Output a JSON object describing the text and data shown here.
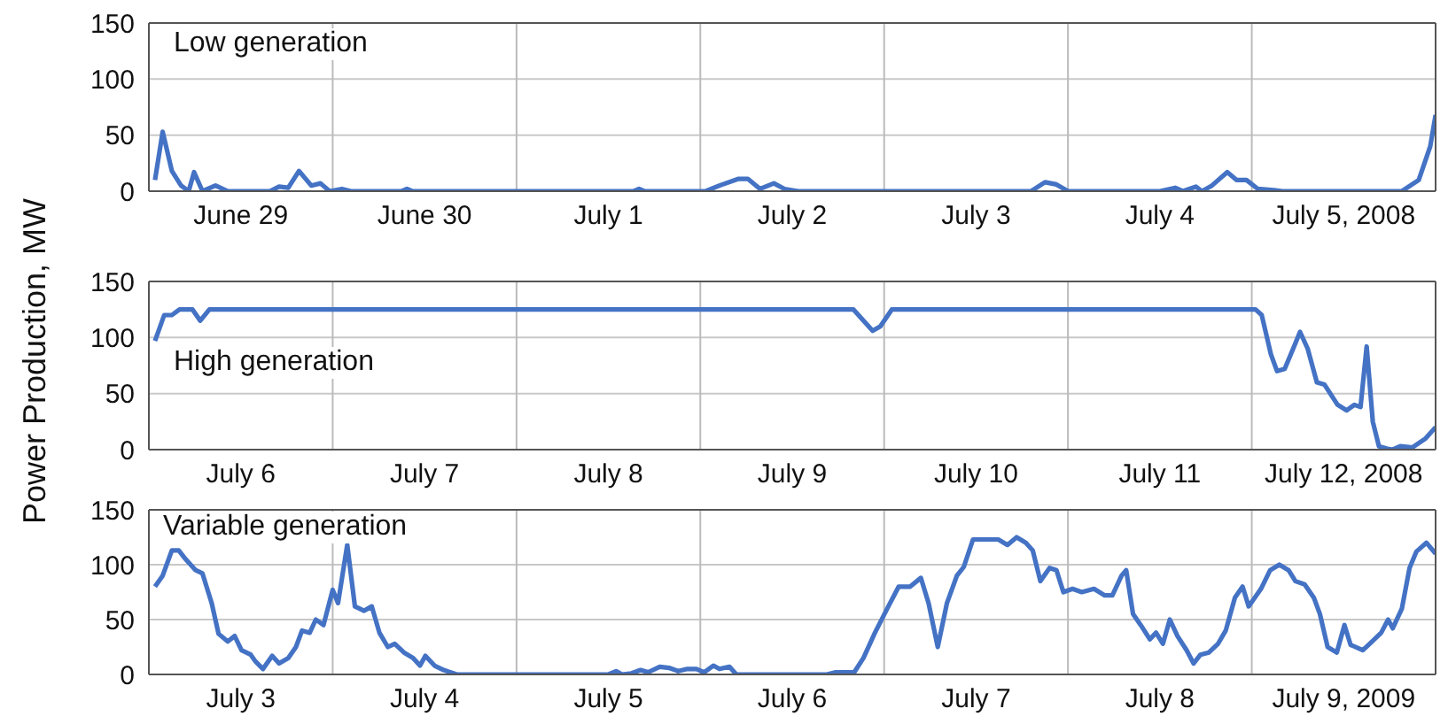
{
  "chart_data": [
    {
      "type": "line",
      "title": "Low generation",
      "color": "#4472c4",
      "grid": "y",
      "xlim": [
        "2008-06-29T00:00",
        "2008-07-06T00:00"
      ],
      "ylim": [
        0,
        150
      ],
      "yticks": [
        0,
        50,
        100,
        150
      ],
      "xticks": [
        {
          "value": "2008-06-29T12:00",
          "label": "June 29"
        },
        {
          "value": "2008-06-30T12:00",
          "label": "June 30"
        },
        {
          "value": "2008-07-01T12:00",
          "label": "July 1"
        },
        {
          "value": "2008-07-02T12:00",
          "label": "July 2"
        },
        {
          "value": "2008-07-03T12:00",
          "label": "July 3"
        },
        {
          "value": "2008-07-04T12:00",
          "label": "July 4"
        },
        {
          "value": "2008-07-05T12:00",
          "label": "July 5, 2008"
        }
      ],
      "ref_lines": [
        {
          "axis": "x",
          "value": "2008-06-30T00:00",
          "color": "#bbbbbb"
        },
        {
          "axis": "x",
          "value": "2008-07-01T00:00",
          "color": "#bbbbbb"
        },
        {
          "axis": "x",
          "value": "2008-07-02T00:00",
          "color": "#bbbbbb"
        },
        {
          "axis": "x",
          "value": "2008-07-03T00:00",
          "color": "#bbbbbb"
        },
        {
          "axis": "x",
          "value": "2008-07-04T00:00",
          "color": "#bbbbbb"
        },
        {
          "axis": "x",
          "value": "2008-07-05T00:00",
          "color": "#bbbbbb"
        }
      ],
      "x": [
        "2008-06-29T00:48",
        "2008-06-29T01:48",
        "2008-06-29T03:00",
        "2008-06-29T04:12",
        "2008-06-29T05:12",
        "2008-06-29T05:54",
        "2008-06-29T07:00",
        "2008-06-29T08:42",
        "2008-06-29T10:18",
        "2008-06-29T15:48",
        "2008-06-29T17:00",
        "2008-06-29T18:12",
        "2008-06-29T19:36",
        "2008-06-29T21:12",
        "2008-06-29T22:24",
        "2008-06-29T23:36",
        "2008-06-30T01:12",
        "2008-06-30T02:24",
        "2008-06-30T09:00",
        "2008-06-30T09:42",
        "2008-06-30T10:24",
        "2008-07-01T15:18",
        "2008-07-01T16:00",
        "2008-07-01T16:42",
        "2008-07-02T00:42",
        "2008-07-02T02:30",
        "2008-07-02T05:00",
        "2008-07-02T06:12",
        "2008-07-02T07:48",
        "2008-07-02T09:36",
        "2008-07-02T11:00",
        "2008-07-02T12:48",
        "2008-07-03T19:12",
        "2008-07-03T21:00",
        "2008-07-03T22:30",
        "2008-07-04T00:00",
        "2008-07-04T12:00",
        "2008-07-04T14:00",
        "2008-07-04T15:00",
        "2008-07-04T16:42",
        "2008-07-04T17:30",
        "2008-07-04T18:48",
        "2008-07-04T20:48",
        "2008-07-04T22:00",
        "2008-07-04T23:18",
        "2008-07-05T00:48",
        "2008-07-05T02:54",
        "2008-07-05T04:00",
        "2008-07-05T19:36",
        "2008-07-05T21:48",
        "2008-07-05T23:18",
        "2008-07-06T00:00"
      ],
      "values": [
        10,
        53,
        18,
        5,
        0,
        17,
        0,
        5,
        0,
        0,
        4,
        3,
        18,
        5,
        7,
        0,
        2,
        0,
        0,
        2,
        0,
        0,
        2,
        0,
        0,
        5,
        11,
        11,
        2,
        7,
        2,
        0,
        0,
        8,
        6,
        0,
        0,
        3,
        0,
        4,
        0,
        5,
        17,
        10,
        10,
        2,
        1,
        0,
        0,
        10,
        40,
        68
      ]
    },
    {
      "type": "line",
      "title": "High generation",
      "ylabel": "Power Production, MW",
      "color": "#4472c4",
      "grid": "y",
      "xlim": [
        "2008-07-06T00:00",
        "2008-07-13T00:00"
      ],
      "ylim": [
        0,
        150
      ],
      "yticks": [
        0,
        50,
        100,
        150
      ],
      "xticks": [
        {
          "value": "2008-07-06T12:00",
          "label": "July 6"
        },
        {
          "value": "2008-07-07T12:00",
          "label": "July 7"
        },
        {
          "value": "2008-07-08T12:00",
          "label": "July 8"
        },
        {
          "value": "2008-07-09T12:00",
          "label": "July 9"
        },
        {
          "value": "2008-07-10T12:00",
          "label": "July 10"
        },
        {
          "value": "2008-07-11T12:00",
          "label": "July 11"
        },
        {
          "value": "2008-07-12T12:00",
          "label": "July 12, 2008"
        }
      ],
      "ref_lines": [
        {
          "axis": "x",
          "value": "2008-07-07T00:00",
          "color": "#bbbbbb"
        },
        {
          "axis": "x",
          "value": "2008-07-08T00:00",
          "color": "#bbbbbb"
        },
        {
          "axis": "x",
          "value": "2008-07-09T00:00",
          "color": "#bbbbbb"
        },
        {
          "axis": "x",
          "value": "2008-07-10T00:00",
          "color": "#bbbbbb"
        },
        {
          "axis": "x",
          "value": "2008-07-11T00:00",
          "color": "#bbbbbb"
        },
        {
          "axis": "x",
          "value": "2008-07-12T00:00",
          "color": "#bbbbbb"
        }
      ],
      "x": [
        "2008-07-06T00:48",
        "2008-07-06T02:00",
        "2008-07-06T03:00",
        "2008-07-06T04:00",
        "2008-07-06T05:42",
        "2008-07-06T06:42",
        "2008-07-06T07:54",
        "2008-07-09T20:00",
        "2008-07-09T21:18",
        "2008-07-09T22:30",
        "2008-07-09T23:30",
        "2008-07-10T01:00",
        "2008-07-12T00:30",
        "2008-07-12T01:18",
        "2008-07-12T02:30",
        "2008-07-12T03:18",
        "2008-07-12T04:18",
        "2008-07-12T05:42",
        "2008-07-12T06:18",
        "2008-07-12T07:18",
        "2008-07-12T08:30",
        "2008-07-12T09:30",
        "2008-07-12T11:12",
        "2008-07-12T12:24",
        "2008-07-12T13:24",
        "2008-07-12T14:12",
        "2008-07-12T15:00",
        "2008-07-12T15:48",
        "2008-07-12T16:36",
        "2008-07-12T17:36",
        "2008-07-12T18:24",
        "2008-07-12T19:24",
        "2008-07-12T21:00",
        "2008-07-12T22:42",
        "2008-07-13T00:00"
      ],
      "values": [
        97,
        120,
        120,
        125,
        125,
        115,
        125,
        125,
        115,
        106,
        110,
        125,
        125,
        120,
        85,
        70,
        72,
        95,
        105,
        90,
        60,
        58,
        40,
        35,
        40,
        38,
        92,
        25,
        3,
        1,
        0,
        3,
        2,
        10,
        20
      ]
    },
    {
      "type": "line",
      "title": "Variable generation",
      "color": "#4472c4",
      "grid": "y",
      "xlim": [
        "2009-07-03T00:00",
        "2009-07-10T00:00"
      ],
      "ylim": [
        0,
        150
      ],
      "yticks": [
        0,
        50,
        100,
        150
      ],
      "xticks": [
        {
          "value": "2009-07-03T12:00",
          "label": "July 3"
        },
        {
          "value": "2009-07-04T12:00",
          "label": "July 4"
        },
        {
          "value": "2009-07-05T12:00",
          "label": "July 5"
        },
        {
          "value": "2009-07-06T12:00",
          "label": "July 6"
        },
        {
          "value": "2009-07-07T12:00",
          "label": "July 7"
        },
        {
          "value": "2009-07-08T12:00",
          "label": "July 8"
        },
        {
          "value": "2009-07-09T12:00",
          "label": "July 9, 2009"
        }
      ],
      "ref_lines": [
        {
          "axis": "x",
          "value": "2009-07-04T00:00",
          "color": "#bbbbbb"
        },
        {
          "axis": "x",
          "value": "2009-07-05T00:00",
          "color": "#bbbbbb"
        },
        {
          "axis": "x",
          "value": "2009-07-06T00:00",
          "color": "#bbbbbb"
        },
        {
          "axis": "x",
          "value": "2009-07-07T00:00",
          "color": "#bbbbbb"
        },
        {
          "axis": "x",
          "value": "2009-07-08T00:00",
          "color": "#bbbbbb"
        },
        {
          "axis": "x",
          "value": "2009-07-09T00:00",
          "color": "#bbbbbb"
        }
      ],
      "x": [
        "2009-07-03T00:48",
        "2009-07-03T01:48",
        "2009-07-03T03:00",
        "2009-07-03T03:54",
        "2009-07-03T04:48",
        "2009-07-03T06:06",
        "2009-07-03T07:00",
        "2009-07-03T08:12",
        "2009-07-03T09:06",
        "2009-07-03T10:18",
        "2009-07-03T11:12",
        "2009-07-03T12:06",
        "2009-07-03T13:18",
        "2009-07-03T13:54",
        "2009-07-03T14:54",
        "2009-07-03T16:06",
        "2009-07-03T17:00",
        "2009-07-03T18:12",
        "2009-07-03T19:12",
        "2009-07-03T20:00",
        "2009-07-03T21:00",
        "2009-07-03T21:48",
        "2009-07-03T22:48",
        "2009-07-04T00:00",
        "2009-07-04T00:42",
        "2009-07-04T01:54",
        "2009-07-04T02:54",
        "2009-07-04T04:06",
        "2009-07-04T05:06",
        "2009-07-04T06:06",
        "2009-07-04T07:12",
        "2009-07-04T08:06",
        "2009-07-04T09:18",
        "2009-07-04T10:30",
        "2009-07-04T11:24",
        "2009-07-04T12:06",
        "2009-07-04T13:18",
        "2009-07-04T14:30",
        "2009-07-04T16:12",
        "2009-07-05T12:00",
        "2009-07-05T13:00",
        "2009-07-05T13:48",
        "2009-07-05T15:00",
        "2009-07-05T16:12",
        "2009-07-05T17:12",
        "2009-07-05T18:42",
        "2009-07-05T19:54",
        "2009-07-05T21:06",
        "2009-07-05T22:18",
        "2009-07-05T23:30",
        "2009-07-06T00:30",
        "2009-07-06T01:42",
        "2009-07-06T02:30",
        "2009-07-06T03:48",
        "2009-07-06T04:42",
        "2009-07-06T16:30",
        "2009-07-06T17:42",
        "2009-07-06T20:06",
        "2009-07-06T21:18",
        "2009-07-06T22:48",
        "2009-07-07T00:24",
        "2009-07-07T01:54",
        "2009-07-07T03:24",
        "2009-07-07T04:48",
        "2009-07-07T05:48",
        "2009-07-07T07:00",
        "2009-07-07T08:12",
        "2009-07-07T09:30",
        "2009-07-07T10:24",
        "2009-07-07T11:36",
        "2009-07-07T14:54",
        "2009-07-07T16:06",
        "2009-07-07T17:18",
        "2009-07-07T18:30",
        "2009-07-07T19:24",
        "2009-07-07T20:24",
        "2009-07-07T21:36",
        "2009-07-07T22:30",
        "2009-07-07T23:24",
        "2009-07-08T00:36",
        "2009-07-08T01:48",
        "2009-07-08T03:24",
        "2009-07-08T04:48",
        "2009-07-08T05:48",
        "2009-07-08T07:00",
        "2009-07-08T07:36",
        "2009-07-08T08:30",
        "2009-07-08T09:30",
        "2009-07-08T10:42",
        "2009-07-08T11:30",
        "2009-07-08T12:24",
        "2009-07-08T13:18",
        "2009-07-08T14:18",
        "2009-07-08T15:30",
        "2009-07-08T16:24",
        "2009-07-08T17:18",
        "2009-07-08T18:24",
        "2009-07-08T19:36",
        "2009-07-08T20:36",
        "2009-07-08T21:48",
        "2009-07-08T22:48",
        "2009-07-08T23:36",
        "2009-07-09T01:12",
        "2009-07-09T02:24",
        "2009-07-09T03:36",
        "2009-07-09T04:48",
        "2009-07-09T05:42",
        "2009-07-09T06:54",
        "2009-07-09T08:06",
        "2009-07-09T08:54",
        "2009-07-09T09:54",
        "2009-07-09T11:06",
        "2009-07-09T12:06",
        "2009-07-09T12:54",
        "2009-07-09T14:30",
        "2009-07-09T15:42",
        "2009-07-09T16:54",
        "2009-07-09T17:48",
        "2009-07-09T18:24",
        "2009-07-09T19:36",
        "2009-07-09T20:36",
        "2009-07-09T21:30",
        "2009-07-09T22:48",
        "2009-07-10T00:00"
      ],
      "values": [
        80,
        90,
        113,
        113,
        105,
        95,
        92,
        65,
        37,
        30,
        35,
        22,
        18,
        12,
        5,
        17,
        10,
        15,
        25,
        40,
        38,
        50,
        45,
        77,
        65,
        118,
        62,
        58,
        62,
        38,
        25,
        28,
        20,
        15,
        8,
        17,
        8,
        4,
        0,
        0,
        3,
        0,
        1,
        4,
        2,
        7,
        6,
        3,
        5,
        5,
        2,
        8,
        5,
        7,
        0,
        0,
        2,
        2,
        15,
        38,
        60,
        80,
        80,
        88,
        65,
        25,
        65,
        90,
        98,
        123,
        123,
        118,
        125,
        120,
        113,
        85,
        97,
        95,
        75,
        78,
        75,
        78,
        72,
        72,
        90,
        95,
        55,
        45,
        32,
        38,
        28,
        50,
        35,
        22,
        10,
        18,
        20,
        28,
        40,
        70,
        80,
        62,
        78,
        95,
        100,
        95,
        85,
        82,
        70,
        55,
        25,
        20,
        45,
        27,
        22,
        30,
        38,
        50,
        42,
        60,
        97,
        112,
        120,
        110
      ]
    }
  ]
}
